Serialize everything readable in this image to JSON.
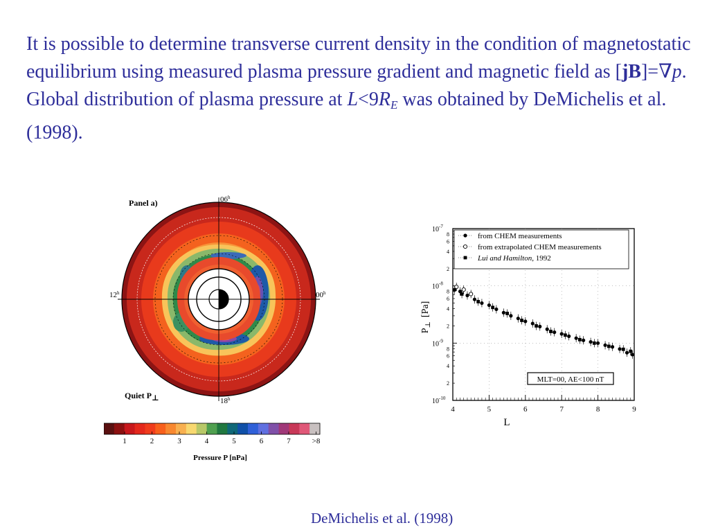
{
  "slide": {
    "p1": "It is possible to determine transverse current density in the condition of magnetostatic equilibrium using measured plasma pressure gradient and magnetic field as [",
    "jB": "jB",
    "eq": "]=",
    "nabla": "∇",
    "p": "p",
    "p2": ". Global distribution of plasma pressure at ",
    "L": "L",
    "lt": "<9",
    "R": "R",
    "E": "E",
    "p3": " was obtained by DeMichelis et al. (1998).",
    "caption": "DeMichelis et al. (1998)"
  },
  "panel_a": {
    "title": "Panel a)",
    "mlt_top": "06",
    "mlt_left": "12",
    "mlt_right": "00",
    "mlt_bottom": "18",
    "mlt_suffix": "h",
    "quiet_label": "Quiet P",
    "quiet_sub": "⊥",
    "colorbar_ticks": [
      "1",
      "2",
      "3",
      "4",
      "5",
      "6",
      "7",
      ">8"
    ],
    "colorbar_colors": [
      "#5a1010",
      "#8c1010",
      "#c8181c",
      "#e4281c",
      "#f03c1c",
      "#f8601c",
      "#f88830",
      "#f8b050",
      "#f8d870",
      "#b8c868",
      "#50a050",
      "#207840",
      "#106878",
      "#1050a8",
      "#3060d8",
      "#6070e0",
      "#8050a8",
      "#a03878",
      "#c83858",
      "#e05878",
      "#c8c0c0"
    ],
    "colorbar_label": "Pressure P [nPa]"
  },
  "chart_data": {
    "type": "scatter",
    "title": "",
    "xlabel": "L",
    "ylabel": "P",
    "ylabel_sub": "⊥",
    "ylabel_unit": "[Pa]",
    "x_ticks": [
      "4",
      "5",
      "6",
      "7",
      "8",
      "9"
    ],
    "xlim": [
      4,
      9
    ],
    "ylim": [
      1e-10,
      1e-07
    ],
    "y_scale": "log",
    "y_decade_labels": [
      {
        "base": "10",
        "exp": "-7",
        "value": 1e-07
      },
      {
        "base": "10",
        "exp": "-8",
        "value": 1e-08
      },
      {
        "base": "10",
        "exp": "-9",
        "value": 1e-09
      },
      {
        "base": "10",
        "exp": "-10",
        "value": 1e-10
      }
    ],
    "y_minor_labels": [
      "8",
      "6",
      "4",
      "2"
    ],
    "grid": true,
    "legend_position": "top-right",
    "legend": [
      {
        "text": "from CHEM measurements",
        "marker": "filled-circle",
        "style": "normal"
      },
      {
        "text": "from extrapolated CHEM measurements",
        "marker": "open-circle",
        "style": "normal"
      },
      {
        "text": "Lui and Hamilton",
        "suffix": ", 1992",
        "marker": "filled-square",
        "style": "italic"
      }
    ],
    "annotation": "MLT=00, AE<100 nT",
    "series": [
      {
        "name": "from CHEM measurements",
        "marker": "filled-circle",
        "x": [
          4.05,
          4.2,
          4.4,
          4.6,
          4.8,
          5.0,
          5.2,
          5.4,
          5.6,
          5.8,
          6.0,
          6.2,
          6.4,
          6.6,
          6.8,
          7.0,
          7.2,
          7.4,
          7.6,
          7.8,
          8.0,
          8.2,
          8.4,
          8.6,
          8.8,
          8.95
        ],
        "y": [
          8.5e-09,
          8e-09,
          6.8e-09,
          5.8e-09,
          5e-09,
          4.6e-09,
          3.9e-09,
          3.4e-09,
          3e-09,
          2.7e-09,
          2.4e-09,
          2.2e-09,
          1.95e-09,
          1.75e-09,
          1.55e-09,
          1.45e-09,
          1.32e-09,
          1.22e-09,
          1.12e-09,
          1.05e-09,
          1e-09,
          9.2e-10,
          8.6e-10,
          7.9e-10,
          6.8e-10,
          6.3e-10
        ]
      },
      {
        "name": "from extrapolated CHEM measurements",
        "marker": "open-circle",
        "x": [
          4.1,
          4.3,
          4.5
        ],
        "y": [
          9.6e-09,
          8.6e-09,
          7.2e-09
        ]
      },
      {
        "name": "Lui and Hamilton, 1992",
        "marker": "filled-square",
        "x": [
          4.25,
          4.7,
          5.1,
          5.5,
          5.9,
          6.3,
          6.7,
          7.1,
          7.5,
          7.9,
          8.3,
          8.7,
          8.9
        ],
        "y": [
          7.2e-09,
          5.3e-09,
          4.2e-09,
          3.3e-09,
          2.5e-09,
          2e-09,
          1.6e-09,
          1.38e-09,
          1.15e-09,
          1e-09,
          8.8e-10,
          7.8e-10,
          7.2e-10
        ]
      }
    ]
  }
}
